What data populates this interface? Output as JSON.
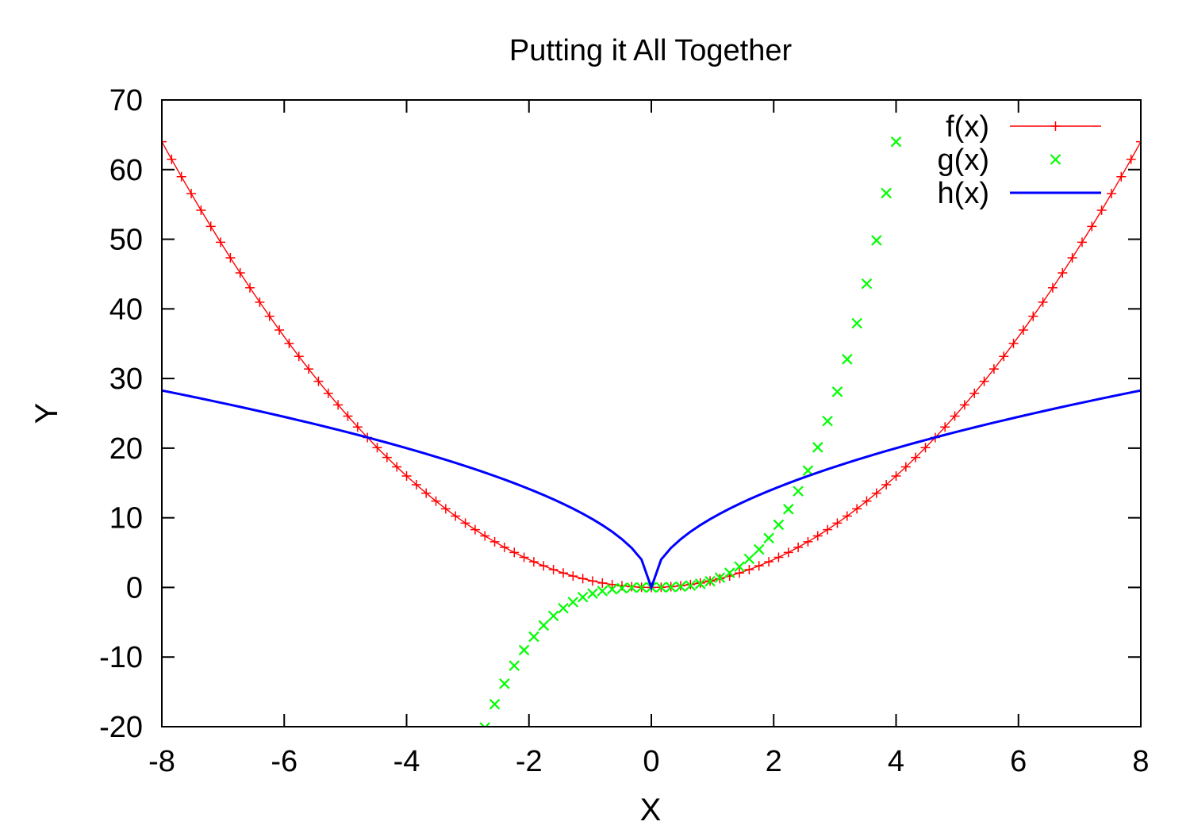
{
  "chart_data": {
    "type": "line",
    "title": "Putting it All Together",
    "xlabel": "X",
    "ylabel": "Y",
    "xlim": [
      -8,
      8
    ],
    "ylim": [
      -20,
      70
    ],
    "xticks": [
      -8,
      -6,
      -4,
      -2,
      0,
      2,
      4,
      6,
      8
    ],
    "yticks": [
      -20,
      -10,
      0,
      10,
      20,
      30,
      40,
      50,
      60,
      70
    ],
    "grid": false,
    "legend_position": "top-right",
    "series": [
      {
        "name": "f(x)",
        "style": "linespoints",
        "marker": "plus",
        "color": "#ff0000",
        "x_range": [
          -8,
          8
        ],
        "samples": 101,
        "formula": "x^2",
        "endpoints": [
          [
            -8,
            64
          ],
          [
            0,
            0
          ],
          [
            8,
            64
          ]
        ]
      },
      {
        "name": "g(x)",
        "style": "points",
        "marker": "cross",
        "color": "#00ff00",
        "x_range": [
          -8,
          8
        ],
        "samples": 101,
        "formula": "x^3",
        "visible_points": [
          [
            -2.72,
            -20.1
          ],
          [
            -2.56,
            -16.8
          ],
          [
            -2.4,
            -13.8
          ],
          [
            -2.24,
            -11.2
          ],
          [
            0,
            0
          ],
          [
            2.24,
            11.2
          ],
          [
            2.56,
            16.8
          ],
          [
            3.2,
            32.8
          ],
          [
            3.84,
            56.6
          ],
          [
            4.0,
            64.0
          ]
        ]
      },
      {
        "name": "h(x)",
        "style": "lines",
        "color": "#0000ff",
        "x_range": [
          -8,
          8
        ],
        "samples": 101,
        "formula": "10*sqrt(|x|)",
        "endpoints": [
          [
            -8,
            28.3
          ],
          [
            -0.08,
            2.8
          ],
          [
            0.08,
            2.8
          ],
          [
            8,
            28.3
          ]
        ]
      }
    ]
  }
}
